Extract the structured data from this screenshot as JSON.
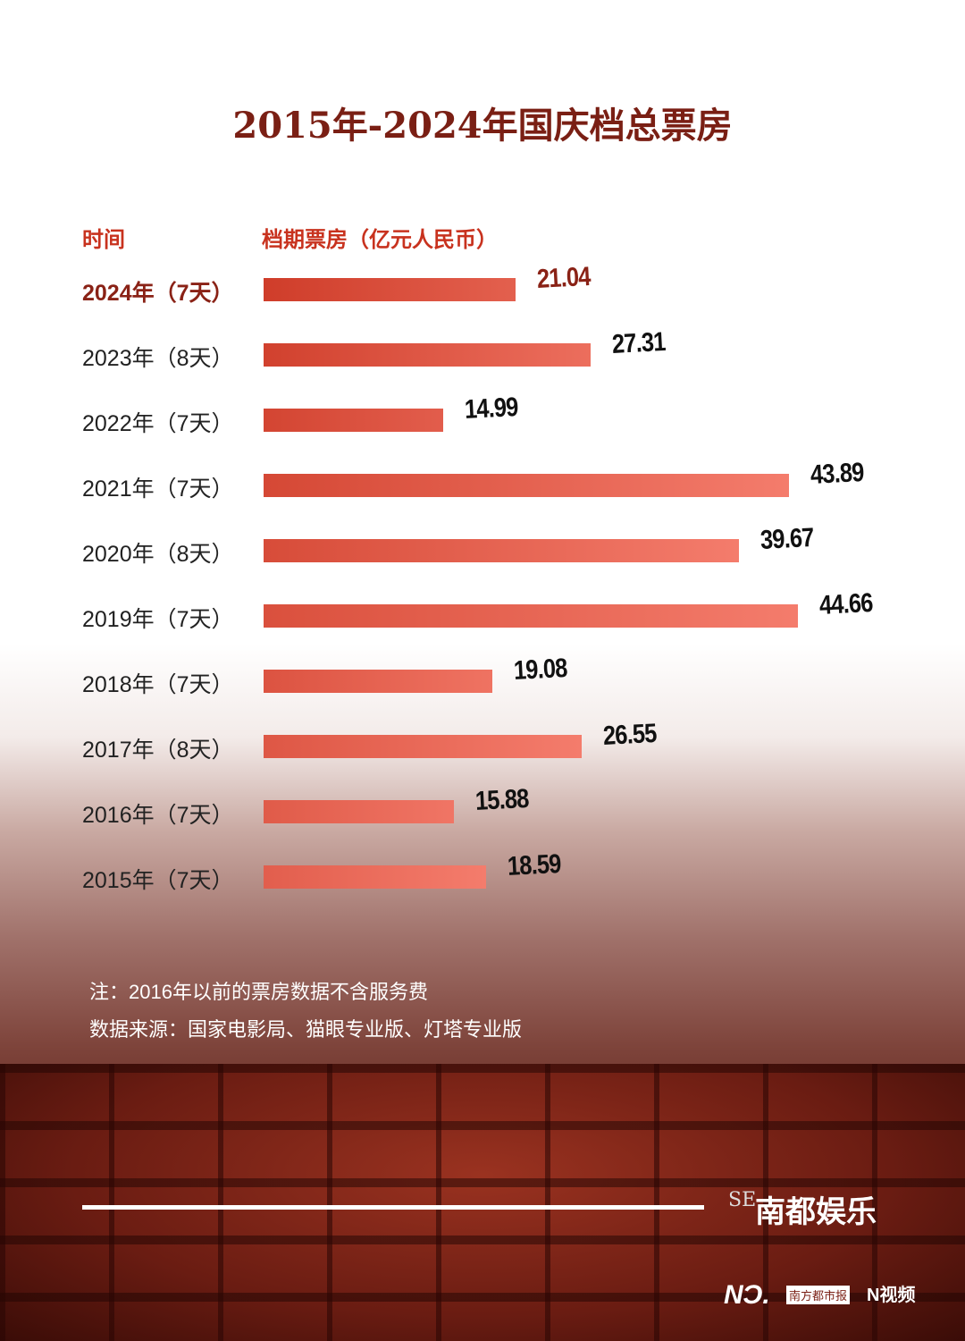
{
  "chart_data": {
    "type": "bar",
    "orientation": "horizontal",
    "title": "2015年-2024年国庆档总票房",
    "xlabel": "档期票房（亿元人民币）",
    "ylabel": "时间",
    "categories": [
      "2024年（7天）",
      "2023年（8天）",
      "2022年（7天）",
      "2021年（7天）",
      "2020年（8天）",
      "2019年（7天）",
      "2018年（7天）",
      "2017年（8天）",
      "2016年（7天）",
      "2015年（7天）"
    ],
    "values": [
      21.04,
      27.31,
      14.99,
      43.89,
      39.67,
      44.66,
      19.08,
      26.55,
      15.88,
      18.59
    ],
    "value_labels": [
      "21.04",
      "27.31",
      "14.99",
      "43.89",
      "39.67",
      "44.66",
      "19.08",
      "26.55",
      "15.88",
      "18.59"
    ],
    "xlim": [
      0,
      50
    ],
    "grid": false
  },
  "notes": [
    "注：2016年以前的票房数据不含服务费",
    "数据来源：国家电影局、猫眼专业版、灯塔专业版"
  ],
  "brand": {
    "se": "SE",
    "name": "南都娱乐",
    "nd": "NƆ.",
    "paper": "南方都市报",
    "video": "N视频"
  },
  "colors": {
    "title": "#7a1f14",
    "bar_dark": "#c8321e",
    "bar_light": "#f47c6c"
  }
}
